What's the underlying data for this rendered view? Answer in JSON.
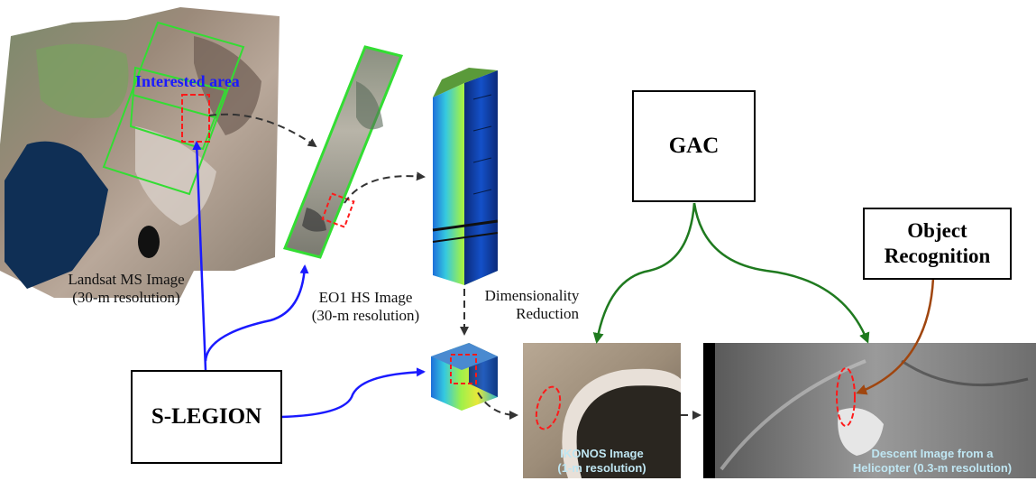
{
  "labels": {
    "interested_area": "Interested area",
    "landsat_line1": "Landsat MS Image",
    "landsat_line2": "(30-m resolution)",
    "eo1_line1": "EO1 HS Image",
    "eo1_line2": "(30-m resolution)",
    "dimred_line1": "Dimensionality",
    "dimred_line2": "Reduction",
    "ikonos_line1": "IKONOS Image",
    "ikonos_line2": "(1-m resolution)",
    "descent_line1": "Descent Image from a",
    "descent_line2": "Helicopter (0.3-m resolution)"
  },
  "boxes": {
    "gac": "GAC",
    "object_line1": "Object",
    "object_line2": "Recognition",
    "slegion": "S-LEGION"
  },
  "colors": {
    "blue_arrow": "#1a1aff",
    "green_arrow": "#1f7a1f",
    "brown_arrow": "#a0460f",
    "dashed_arrow": "#333333",
    "red_roi": "#ff1a1a",
    "frame_green": "#33dd33"
  }
}
